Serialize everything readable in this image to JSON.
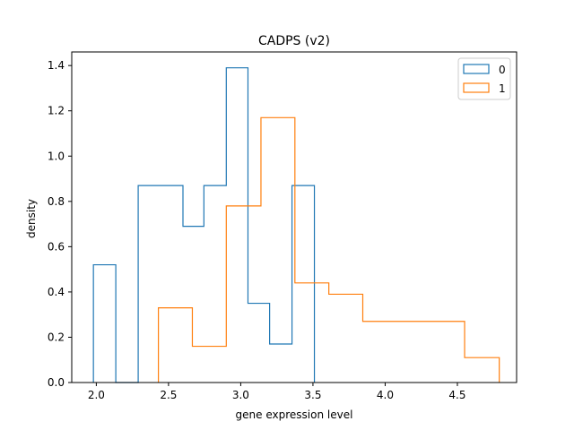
{
  "chart_data": {
    "type": "histogram",
    "title": "CADPS  (v2)",
    "xlabel": "gene expression level",
    "ylabel": "density",
    "xlim": [
      1.83,
      4.91
    ],
    "ylim": [
      0,
      1.46
    ],
    "xticks": [
      2.0,
      2.5,
      3.0,
      3.5,
      4.0,
      4.5
    ],
    "xtick_labels": [
      "2.0",
      "2.5",
      "3.0",
      "3.5",
      "4.0",
      "4.5"
    ],
    "yticks": [
      0.0,
      0.2,
      0.4,
      0.6,
      0.8,
      1.0,
      1.2,
      1.4
    ],
    "ytick_labels": [
      "0.0",
      "0.2",
      "0.4",
      "0.6",
      "0.8",
      "1.0",
      "1.2",
      "1.4"
    ],
    "grid": false,
    "legend_position": "top-right",
    "series": [
      {
        "name": "0",
        "color": "#1f77b4",
        "histtype": "step",
        "bin_edges": [
          1.98,
          2.135,
          2.29,
          2.445,
          2.6,
          2.745,
          2.9,
          3.05,
          3.2,
          3.355,
          3.51
        ],
        "densities": [
          0.52,
          0.0,
          0.87,
          0.87,
          0.69,
          0.87,
          1.39,
          0.35,
          0.17,
          0.87
        ]
      },
      {
        "name": "1",
        "color": "#ff7f0e",
        "histtype": "step",
        "bin_edges": [
          2.43,
          2.665,
          2.9,
          3.14,
          3.375,
          3.61,
          3.845,
          4.08,
          4.315,
          4.55,
          4.79
        ],
        "densities": [
          0.33,
          0.16,
          0.78,
          1.17,
          0.44,
          0.39,
          0.27,
          0.27,
          0.27,
          0.11
        ]
      }
    ]
  }
}
